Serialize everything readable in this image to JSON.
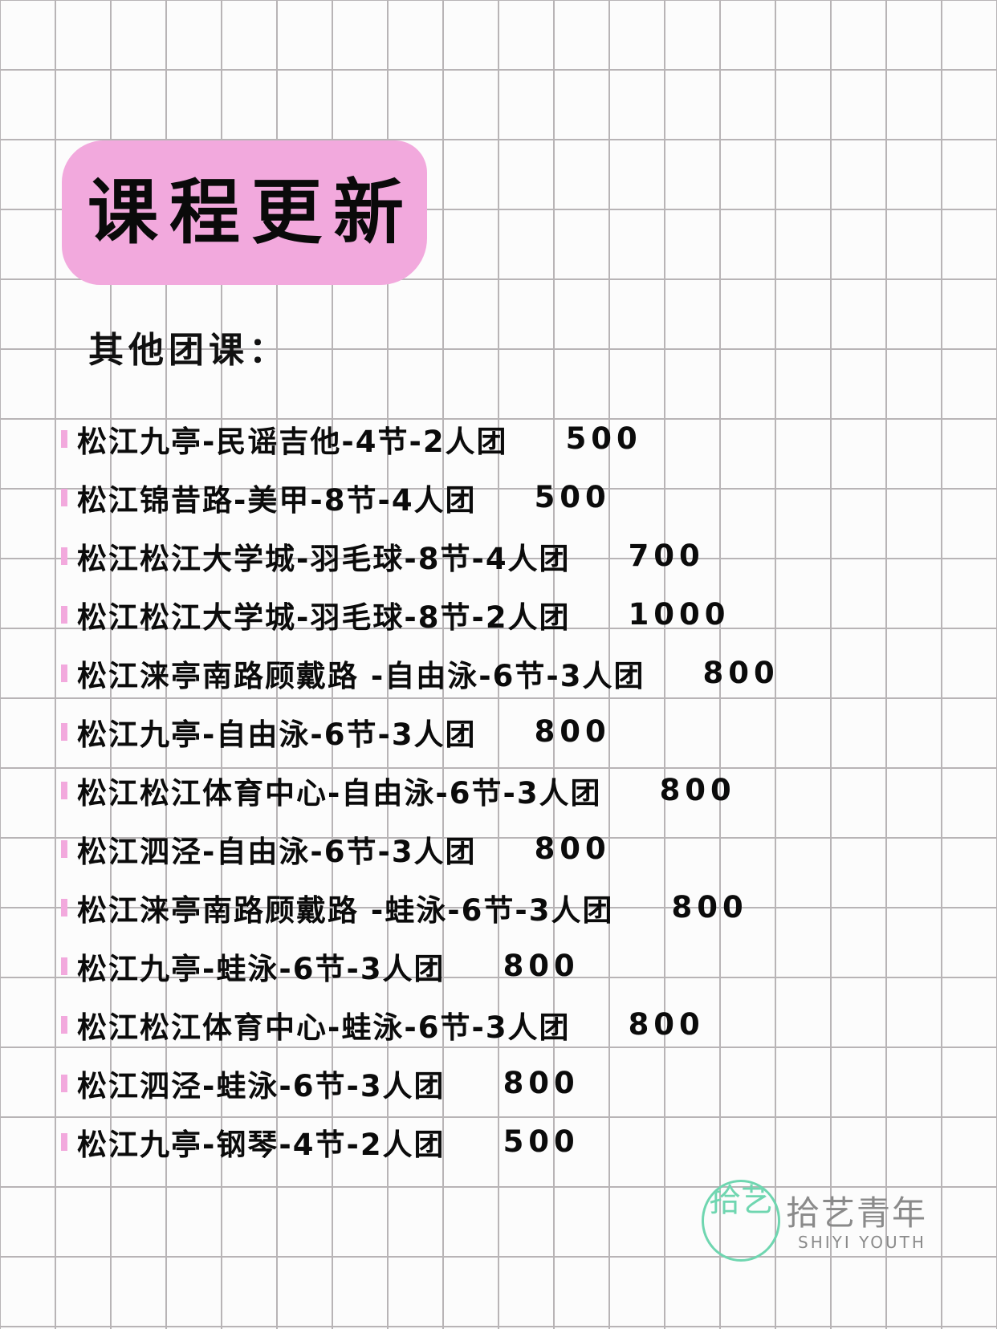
{
  "header": {
    "title": "课程更新"
  },
  "section": {
    "subtitle": "其他团课："
  },
  "accent_color": "#f2a9dd",
  "courses": [
    {
      "name": "松江九亭-民谣吉他-4节-2人团",
      "price": "500"
    },
    {
      "name": "松江锦昔路-美甲-8节-4人团",
      "price": "500"
    },
    {
      "name": "松江松江大学城-羽毛球-8节-4人团",
      "price": "700"
    },
    {
      "name": "松江松江大学城-羽毛球-8节-2人团",
      "price": "1000"
    },
    {
      "name": "松江涞亭南路顾戴路 -自由泳-6节-3人团",
      "price": "800"
    },
    {
      "name": "松江九亭-自由泳-6节-3人团",
      "price": "800"
    },
    {
      "name": "松江松江体育中心-自由泳-6节-3人团",
      "price": "800"
    },
    {
      "name": "松江泗泾-自由泳-6节-3人团",
      "price": "800"
    },
    {
      "name": "松江涞亭南路顾戴路 -蛙泳-6节-3人团",
      "price": "800"
    },
    {
      "name": "松江九亭-蛙泳-6节-3人团",
      "price": "800"
    },
    {
      "name": "松江松江体育中心-蛙泳-6节-3人团",
      "price": "800"
    },
    {
      "name": "松江泗泾-蛙泳-6节-3人团",
      "price": "800"
    },
    {
      "name": "松江九亭-钢琴-4节-2人团",
      "price": "500"
    }
  ],
  "logo": {
    "mark": "拾艺",
    "name_cn": "拾艺青年",
    "name_en": "SHIYI YOUTH"
  }
}
